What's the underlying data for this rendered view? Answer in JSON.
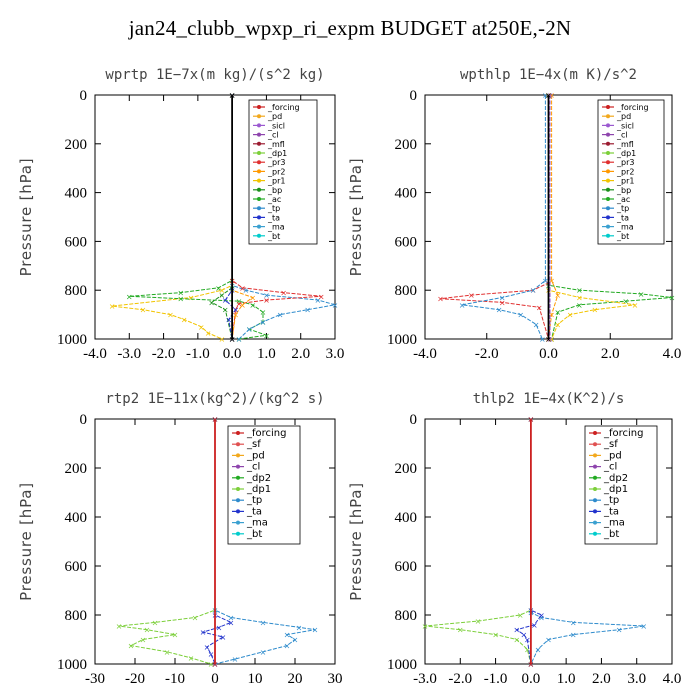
{
  "figure_title": "jan24_clubb_wpxp_ri_expm  BUDGET at250E,-2N",
  "chart_data": [
    {
      "type": "line",
      "title": "wprtp   1E−7x(m kg)/(s^2 kg)",
      "ylabel": "Pressure [hPa]",
      "xlim": [
        -4.0,
        3.0
      ],
      "ylim": [
        1000,
        0
      ],
      "xticks": [
        -4.0,
        -3.0,
        -2.0,
        -1.0,
        0.0,
        1.0,
        2.0,
        3.0
      ],
      "xtick_labels": [
        "-4.0",
        "-3.0",
        "-2.0",
        "-1.0",
        "0.0",
        "1.0",
        "2.0",
        "3.0"
      ],
      "yticks": [
        0,
        200,
        400,
        600,
        800,
        1000
      ],
      "legend": [
        "_forcing",
        "_pd",
        "_sicl",
        "_cl",
        "_mfl",
        "_dp1",
        "_pr3",
        "_pr2",
        "_pr1",
        "_bp",
        "_ac",
        "_tp",
        "_ta",
        "_ma",
        "_bt"
      ],
      "series": [
        {
          "name": "_pr1",
          "color": "#f2c400",
          "points": [
            [
              0,
              0
            ],
            [
              0,
              780
            ],
            [
              -0.3,
              800
            ],
            [
              -1.2,
              830
            ],
            [
              -3.5,
              865
            ],
            [
              -2.6,
              880
            ],
            [
              -1.8,
              900
            ],
            [
              -1.4,
              920
            ],
            [
              -0.9,
              950
            ],
            [
              -0.7,
              975
            ],
            [
              -0.3,
              1000
            ]
          ]
        },
        {
          "name": "_ac",
          "color": "#22aa22",
          "points": [
            [
              0,
              0
            ],
            [
              0,
              760
            ],
            [
              -0.4,
              790
            ],
            [
              -1.5,
              810
            ],
            [
              -3.0,
              825
            ],
            [
              -1.5,
              835
            ],
            [
              0.2,
              845
            ],
            [
              0.6,
              860
            ],
            [
              0.9,
              890
            ],
            [
              0.9,
              930
            ],
            [
              0.5,
              960
            ],
            [
              1.0,
              985
            ],
            [
              0.2,
              1000
            ]
          ]
        },
        {
          "name": "_tp",
          "color": "#2e8bcc",
          "points": [
            [
              0,
              0
            ],
            [
              0,
              780
            ],
            [
              0.4,
              800
            ],
            [
              1.0,
              820
            ],
            [
              2.5,
              840
            ],
            [
              3.0,
              860
            ],
            [
              2.2,
              880
            ],
            [
              1.4,
              900
            ],
            [
              0.9,
              930
            ],
            [
              0.5,
              960
            ],
            [
              0.2,
              1000
            ]
          ]
        },
        {
          "name": "_pr3",
          "color": "#e03030",
          "points": [
            [
              0,
              0
            ],
            [
              0,
              760
            ],
            [
              0.3,
              790
            ],
            [
              1.5,
              810
            ],
            [
              2.6,
              825
            ],
            [
              1.0,
              840
            ],
            [
              0.2,
              855
            ],
            [
              0.1,
              880
            ],
            [
              0,
              1000
            ]
          ]
        },
        {
          "name": "_pr2",
          "color": "#ff9900",
          "points": [
            [
              0,
              0
            ],
            [
              0,
              800
            ],
            [
              0.6,
              830
            ],
            [
              0.3,
              860
            ],
            [
              0.1,
              900
            ],
            [
              0,
              1000
            ]
          ]
        },
        {
          "name": "_bp",
          "color": "#1a8f1a",
          "points": [
            [
              0,
              0
            ],
            [
              0,
              790
            ],
            [
              -0.3,
              820
            ],
            [
              -0.6,
              850
            ],
            [
              -0.2,
              880
            ],
            [
              0,
              1000
            ]
          ]
        },
        {
          "name": "_ta",
          "color": "#2233cc",
          "points": [
            [
              0,
              0
            ],
            [
              0,
              800
            ],
            [
              -0.2,
              840
            ],
            [
              0.1,
              880
            ],
            [
              -0.1,
              920
            ],
            [
              0,
              1000
            ]
          ]
        },
        {
          "name": "_forcing",
          "color": "#000000",
          "points": [
            [
              0,
              0
            ],
            [
              0,
              1000
            ]
          ]
        }
      ]
    },
    {
      "type": "line",
      "title": "wpthlp   1E−4x(m K)/s^2",
      "ylabel": "Pressure [hPa]",
      "xlim": [
        -4.0,
        4.0
      ],
      "ylim": [
        1000,
        0
      ],
      "xticks": [
        -4.0,
        -2.0,
        0.0,
        2.0,
        4.0
      ],
      "xtick_labels": [
        "-4.0",
        "-2.0",
        "0.0",
        "2.0",
        "4.0"
      ],
      "yticks": [
        0,
        200,
        400,
        600,
        800,
        1000
      ],
      "legend": [
        "_forcing",
        "_pd",
        "_sicl",
        "_cl",
        "_mfl",
        "_dp1",
        "_pr3",
        "_pr2",
        "_pr1",
        "_bp",
        "_ac",
        "_tp",
        "_ta",
        "_ma",
        "_bt"
      ],
      "series": [
        {
          "name": "_pr3",
          "color": "#e03030",
          "points": [
            [
              0,
              0
            ],
            [
              0,
              770
            ],
            [
              -0.5,
              800
            ],
            [
              -2.5,
              820
            ],
            [
              -3.5,
              835
            ],
            [
              -1.5,
              850
            ],
            [
              -0.3,
              870
            ],
            [
              0,
              1000
            ]
          ]
        },
        {
          "name": "_tp",
          "color": "#2e8bcc",
          "points": [
            [
              -0.1,
              0
            ],
            [
              -0.1,
              760
            ],
            [
              -0.5,
              800
            ],
            [
              -1.5,
              830
            ],
            [
              -2.8,
              860
            ],
            [
              -1.6,
              880
            ],
            [
              -0.9,
              900
            ],
            [
              -0.4,
              940
            ],
            [
              -0.2,
              1000
            ]
          ]
        },
        {
          "name": "_ac",
          "color": "#22aa22",
          "points": [
            [
              0,
              0
            ],
            [
              0,
              780
            ],
            [
              1.0,
              800
            ],
            [
              3.0,
              815
            ],
            [
              4.0,
              830
            ],
            [
              2.5,
              845
            ],
            [
              1.0,
              860
            ],
            [
              0.3,
              890
            ],
            [
              0.1,
              1000
            ]
          ]
        },
        {
          "name": "_pr1",
          "color": "#f2c400",
          "points": [
            [
              0,
              0
            ],
            [
              0,
              800
            ],
            [
              1.0,
              830
            ],
            [
              2.8,
              860
            ],
            [
              1.5,
              880
            ],
            [
              0.7,
              900
            ],
            [
              0.3,
              940
            ],
            [
              0.1,
              1000
            ]
          ]
        },
        {
          "name": "_pr2",
          "color": "#ff9900",
          "points": [
            [
              0.1,
              0
            ],
            [
              0.1,
              760
            ],
            [
              0.3,
              820
            ],
            [
              0.1,
              900
            ],
            [
              0,
              1000
            ]
          ]
        },
        {
          "name": "_sicl",
          "color": "#9b59d0",
          "points": [
            [
              0.05,
              0
            ],
            [
              0.05,
              1000
            ]
          ]
        },
        {
          "name": "_forcing",
          "color": "#000000",
          "points": [
            [
              0,
              0
            ],
            [
              0,
              1000
            ]
          ]
        }
      ]
    },
    {
      "type": "line",
      "title": "rtp2   1E−11x(kg^2)/(kg^2 s)",
      "ylabel": "Pressure [hPa]",
      "xlim": [
        -30,
        30
      ],
      "ylim": [
        1000,
        0
      ],
      "xticks": [
        -30,
        -20,
        -10,
        0,
        10,
        20,
        30
      ],
      "xtick_labels": [
        "-30",
        "-20",
        "-10",
        "0",
        "10",
        "20",
        "30"
      ],
      "yticks": [
        0,
        200,
        400,
        600,
        800,
        1000
      ],
      "legend": [
        "_forcing",
        "_sf",
        "_pd",
        "_cl",
        "_dp2",
        "_dp1",
        "_tp",
        "_ta",
        "_ma",
        "_bt"
      ],
      "series": [
        {
          "name": "_dp1",
          "color": "#7ccf3a",
          "points": [
            [
              0,
              0
            ],
            [
              0,
              780
            ],
            [
              -5,
              810
            ],
            [
              -15,
              830
            ],
            [
              -24,
              845
            ],
            [
              -17,
              860
            ],
            [
              -10,
              880
            ],
            [
              -18,
              900
            ],
            [
              -21,
              925
            ],
            [
              -12,
              950
            ],
            [
              -6,
              975
            ],
            [
              -1,
              1000
            ]
          ]
        },
        {
          "name": "_tp",
          "color": "#2e8bcc",
          "points": [
            [
              0,
              0
            ],
            [
              0,
              780
            ],
            [
              4,
              810
            ],
            [
              12,
              830
            ],
            [
              21,
              850
            ],
            [
              25,
              860
            ],
            [
              18,
              880
            ],
            [
              20,
              900
            ],
            [
              18,
              925
            ],
            [
              12,
              950
            ],
            [
              5,
              980
            ],
            [
              0,
              1000
            ]
          ]
        },
        {
          "name": "_ta",
          "color": "#2233cc",
          "points": [
            [
              0,
              0
            ],
            [
              0,
              800
            ],
            [
              4,
              830
            ],
            [
              1,
              850
            ],
            [
              -3,
              870
            ],
            [
              2,
              890
            ],
            [
              -2,
              930
            ],
            [
              -1,
              960
            ],
            [
              0,
              1000
            ]
          ]
        },
        {
          "name": "_forcing",
          "color": "#cc2020",
          "points": [
            [
              0,
              0
            ],
            [
              0,
              1000
            ]
          ]
        }
      ]
    },
    {
      "type": "line",
      "title": "thlp2   1E−4x(K^2)/s",
      "ylabel": "Pressure [hPa]",
      "xlim": [
        -3.0,
        4.0
      ],
      "ylim": [
        1000,
        0
      ],
      "xticks": [
        -3.0,
        -2.0,
        -1.0,
        0.0,
        1.0,
        2.0,
        3.0,
        4.0
      ],
      "xtick_labels": [
        "-3.0",
        "-2.0",
        "-1.0",
        "0.0",
        "1.0",
        "2.0",
        "3.0",
        "4.0"
      ],
      "yticks": [
        0,
        200,
        400,
        600,
        800,
        1000
      ],
      "legend": [
        "_forcing",
        "_sf",
        "_pd",
        "_cl",
        "_dp2",
        "_dp1",
        "_tp",
        "_ta",
        "_ma",
        "_bt"
      ],
      "series": [
        {
          "name": "_dp1",
          "color": "#7ccf3a",
          "points": [
            [
              0,
              0
            ],
            [
              0,
              780
            ],
            [
              -0.3,
              800
            ],
            [
              -1.5,
              825
            ],
            [
              -3.0,
              845
            ],
            [
              -2.0,
              860
            ],
            [
              -1.0,
              880
            ],
            [
              -0.4,
              900
            ],
            [
              -0.1,
              940
            ],
            [
              0,
              1000
            ]
          ]
        },
        {
          "name": "_tp",
          "color": "#2e8bcc",
          "points": [
            [
              0,
              0
            ],
            [
              0,
              790
            ],
            [
              0.3,
              810
            ],
            [
              1.2,
              830
            ],
            [
              3.2,
              845
            ],
            [
              2.5,
              860
            ],
            [
              1.2,
              880
            ],
            [
              0.5,
              900
            ],
            [
              0.2,
              940
            ],
            [
              0,
              1000
            ]
          ]
        },
        {
          "name": "_ta",
          "color": "#2233cc",
          "points": [
            [
              0,
              0
            ],
            [
              0,
              780
            ],
            [
              0.3,
              800
            ],
            [
              0.1,
              840
            ],
            [
              -0.4,
              860
            ],
            [
              -0.2,
              880
            ],
            [
              -0.1,
              900
            ],
            [
              0,
              1000
            ]
          ]
        },
        {
          "name": "_forcing",
          "color": "#cc2020",
          "points": [
            [
              0,
              0
            ],
            [
              0,
              1000
            ]
          ]
        }
      ]
    }
  ],
  "legend_colors": {
    "_forcing": "#cc2020",
    "_pd": "#f2a81d",
    "_sicl": "#9b59d0",
    "_cl": "#8e44ad",
    "_mfl": "#9b1b30",
    "_dp1": "#7ccf3a",
    "_dp2": "#22aa22",
    "_pr3": "#e03030",
    "_pr2": "#ff9900",
    "_pr1": "#f2c400",
    "_bp": "#1a8f1a",
    "_ac": "#22aa22",
    "_tp": "#2e8bcc",
    "_ta": "#2233cc",
    "_ma": "#3aa0d0",
    "_bt": "#00cccc",
    "_sf": "#e05050"
  }
}
